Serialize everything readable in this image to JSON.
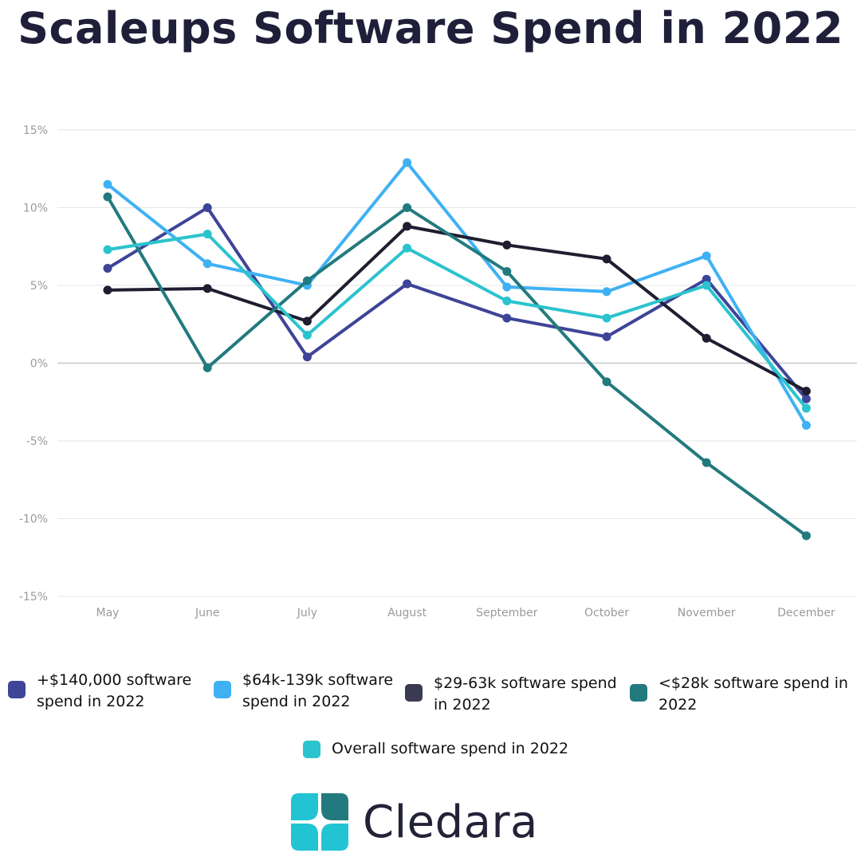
{
  "title": "Scaleups Software Spend in 2022",
  "brand": {
    "name": "Cledara",
    "colors": [
      "#22c4d4",
      "#227a7e"
    ]
  },
  "chart_data": {
    "type": "line",
    "title": "Scaleups Software Spend in 2022",
    "xlabel": "",
    "ylabel": "",
    "categories": [
      "May",
      "June",
      "July",
      "August",
      "September",
      "October",
      "November",
      "December"
    ],
    "y_ticks": [
      "15%",
      "10%",
      "5%",
      "0%",
      "-5%",
      "-10%",
      "-15%"
    ],
    "ylim": [
      -15,
      15
    ],
    "grid": true,
    "legend_position": "bottom",
    "series": [
      {
        "name": "+$140,000 software spend in 2022",
        "color": "#3e4497",
        "values": [
          6.1,
          10.0,
          0.4,
          5.1,
          2.9,
          1.7,
          5.4,
          -2.3
        ]
      },
      {
        "name": "$64k-139k software spend in 2022",
        "color": "#3fb1f3",
        "values": [
          11.5,
          6.4,
          5.0,
          12.9,
          4.9,
          4.6,
          6.9,
          -4.0
        ]
      },
      {
        "name": "$29-63k software spend in 2022",
        "color": "#1e1e30",
        "values": [
          4.7,
          4.8,
          2.7,
          8.8,
          7.6,
          6.7,
          1.6,
          -1.8
        ]
      },
      {
        "name": "<$28k software spend in 2022",
        "color": "#227a7e",
        "values": [
          10.7,
          -0.3,
          5.3,
          10.0,
          5.9,
          -1.2,
          -6.4,
          -11.1
        ]
      },
      {
        "name": "Overall software spend in 2022",
        "color": "#2bc3ce",
        "values": [
          7.3,
          8.3,
          1.8,
          7.4,
          4.0,
          2.9,
          5.0,
          -2.9
        ]
      }
    ]
  }
}
